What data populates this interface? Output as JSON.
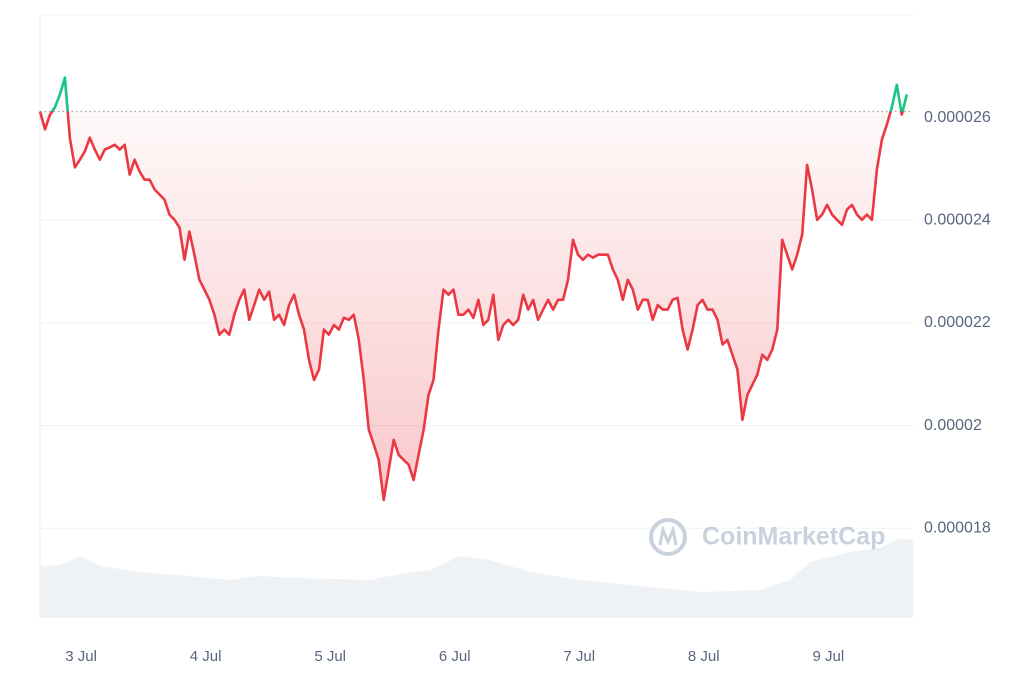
{
  "chart_data": {
    "type": "line",
    "watermark": "CoinMarketCap",
    "color": "#ea3943",
    "color_above": "#16c784",
    "grid": true,
    "xlim": [
      2.67,
      9.68
    ],
    "xticks": [
      {
        "value": 3,
        "label": "3 Jul"
      },
      {
        "value": 4,
        "label": "4 Jul"
      },
      {
        "value": 5,
        "label": "5 Jul"
      },
      {
        "value": 6,
        "label": "6 Jul"
      },
      {
        "value": 7,
        "label": "7 Jul"
      },
      {
        "value": 8,
        "label": "8 Jul"
      },
      {
        "value": 9,
        "label": "9 Jul"
      }
    ],
    "ylim": [
      1.625e-05,
      2.8e-05
    ],
    "yticks": [
      1.8e-05,
      2e-05,
      2.2e-05,
      2.4e-05,
      2.6e-05
    ],
    "x": [
      2.67,
      2.71,
      2.75,
      2.79,
      2.83,
      2.87,
      2.91,
      2.95,
      2.99,
      3.03,
      3.07,
      3.11,
      3.15,
      3.19,
      3.23,
      3.27,
      3.31,
      3.35,
      3.39,
      3.43,
      3.47,
      3.51,
      3.55,
      3.59,
      3.63,
      3.67,
      3.71,
      3.75,
      3.79,
      3.83,
      3.87,
      3.91,
      3.95,
      3.99,
      4.03,
      4.07,
      4.11,
      4.15,
      4.19,
      4.23,
      4.27,
      4.31,
      4.35,
      4.39,
      4.43,
      4.47,
      4.51,
      4.55,
      4.59,
      4.63,
      4.67,
      4.71,
      4.75,
      4.79,
      4.83,
      4.87,
      4.91,
      4.95,
      4.99,
      5.03,
      5.07,
      5.11,
      5.15,
      5.19,
      5.23,
      5.27,
      5.31,
      5.35,
      5.39,
      5.43,
      5.47,
      5.51,
      5.55,
      5.59,
      5.63,
      5.67,
      5.71,
      5.75,
      5.79,
      5.83,
      5.87,
      5.91,
      5.95,
      5.99,
      6.03,
      6.07,
      6.11,
      6.15,
      6.19,
      6.23,
      6.27,
      6.31,
      6.35,
      6.39,
      6.43,
      6.47,
      6.51,
      6.55,
      6.59,
      6.63,
      6.67,
      6.71,
      6.75,
      6.79,
      6.83,
      6.87,
      6.91,
      6.95,
      6.99,
      7.03,
      7.07,
      7.11,
      7.15,
      7.19,
      7.23,
      7.27,
      7.31,
      7.35,
      7.39,
      7.43,
      7.47,
      7.51,
      7.55,
      7.59,
      7.63,
      7.67,
      7.71,
      7.75,
      7.79,
      7.83,
      7.87,
      7.91,
      7.95,
      7.99,
      8.03,
      8.07,
      8.11,
      8.15,
      8.19,
      8.23,
      8.27,
      8.31,
      8.35,
      8.39,
      8.43,
      8.47,
      8.51,
      8.55,
      8.59,
      8.63,
      8.67,
      8.71,
      8.75,
      8.79,
      8.83,
      8.87,
      8.91,
      8.95,
      8.99,
      9.03,
      9.07,
      9.11,
      9.15,
      9.19,
      9.23,
      9.27,
      9.31,
      9.35,
      9.39,
      9.43,
      9.47,
      9.51,
      9.55,
      9.59,
      9.63
    ],
    "values": [
      2.612e-05,
      2.577e-05,
      2.606e-05,
      2.62e-05,
      2.645e-05,
      2.678e-05,
      2.56e-05,
      2.503e-05,
      2.518e-05,
      2.534e-05,
      2.561e-05,
      2.538e-05,
      2.518e-05,
      2.538e-05,
      2.542e-05,
      2.547e-05,
      2.538e-05,
      2.547e-05,
      2.489e-05,
      2.518e-05,
      2.495e-05,
      2.479e-05,
      2.479e-05,
      2.46e-05,
      2.45e-05,
      2.44e-05,
      2.411e-05,
      2.401e-05,
      2.386e-05,
      2.323e-05,
      2.378e-05,
      2.333e-05,
      2.284e-05,
      2.265e-05,
      2.245e-05,
      2.216e-05,
      2.177e-05,
      2.187e-05,
      2.177e-05,
      2.216e-05,
      2.245e-05,
      2.265e-05,
      2.206e-05,
      2.235e-05,
      2.265e-05,
      2.245e-05,
      2.261e-05,
      2.206e-05,
      2.216e-05,
      2.196e-05,
      2.235e-05,
      2.255e-05,
      2.216e-05,
      2.187e-05,
      2.128e-05,
      2.089e-05,
      2.109e-05,
      2.187e-05,
      2.177e-05,
      2.196e-05,
      2.187e-05,
      2.21e-05,
      2.206e-05,
      2.216e-05,
      2.167e-05,
      2.089e-05,
      1.992e-05,
      1.963e-05,
      1.933e-05,
      1.855e-05,
      1.914e-05,
      1.972e-05,
      1.943e-05,
      1.933e-05,
      1.924e-05,
      1.894e-05,
      1.943e-05,
      1.992e-05,
      2.06e-05,
      2.089e-05,
      2.187e-05,
      2.265e-05,
      2.255e-05,
      2.265e-05,
      2.216e-05,
      2.216e-05,
      2.226e-05,
      2.21e-05,
      2.245e-05,
      2.196e-05,
      2.206e-05,
      2.255e-05,
      2.167e-05,
      2.196e-05,
      2.206e-05,
      2.196e-05,
      2.206e-05,
      2.255e-05,
      2.226e-05,
      2.245e-05,
      2.206e-05,
      2.226e-05,
      2.245e-05,
      2.226e-05,
      2.245e-05,
      2.245e-05,
      2.284e-05,
      2.362e-05,
      2.333e-05,
      2.323e-05,
      2.333e-05,
      2.327e-05,
      2.333e-05,
      2.333e-05,
      2.333e-05,
      2.304e-05,
      2.284e-05,
      2.245e-05,
      2.284e-05,
      2.265e-05,
      2.226e-05,
      2.245e-05,
      2.245e-05,
      2.206e-05,
      2.235e-05,
      2.226e-05,
      2.226e-05,
      2.245e-05,
      2.249e-05,
      2.187e-05,
      2.148e-05,
      2.187e-05,
      2.235e-05,
      2.245e-05,
      2.226e-05,
      2.226e-05,
      2.206e-05,
      2.158e-05,
      2.167e-05,
      2.138e-05,
      2.109e-05,
      2.011e-05,
      2.06e-05,
      2.079e-05,
      2.099e-05,
      2.138e-05,
      2.128e-05,
      2.148e-05,
      2.187e-05,
      2.362e-05,
      2.333e-05,
      2.304e-05,
      2.333e-05,
      2.372e-05,
      2.508e-05,
      2.46e-05,
      2.401e-05,
      2.411e-05,
      2.43e-05,
      2.411e-05,
      2.401e-05,
      2.391e-05,
      2.421e-05,
      2.43e-05,
      2.411e-05,
      2.401e-05,
      2.411e-05,
      2.401e-05,
      2.499e-05,
      2.557e-05,
      2.586e-05,
      2.62e-05,
      2.664e-05,
      2.606e-05,
      2.645e-05
    ]
  }
}
